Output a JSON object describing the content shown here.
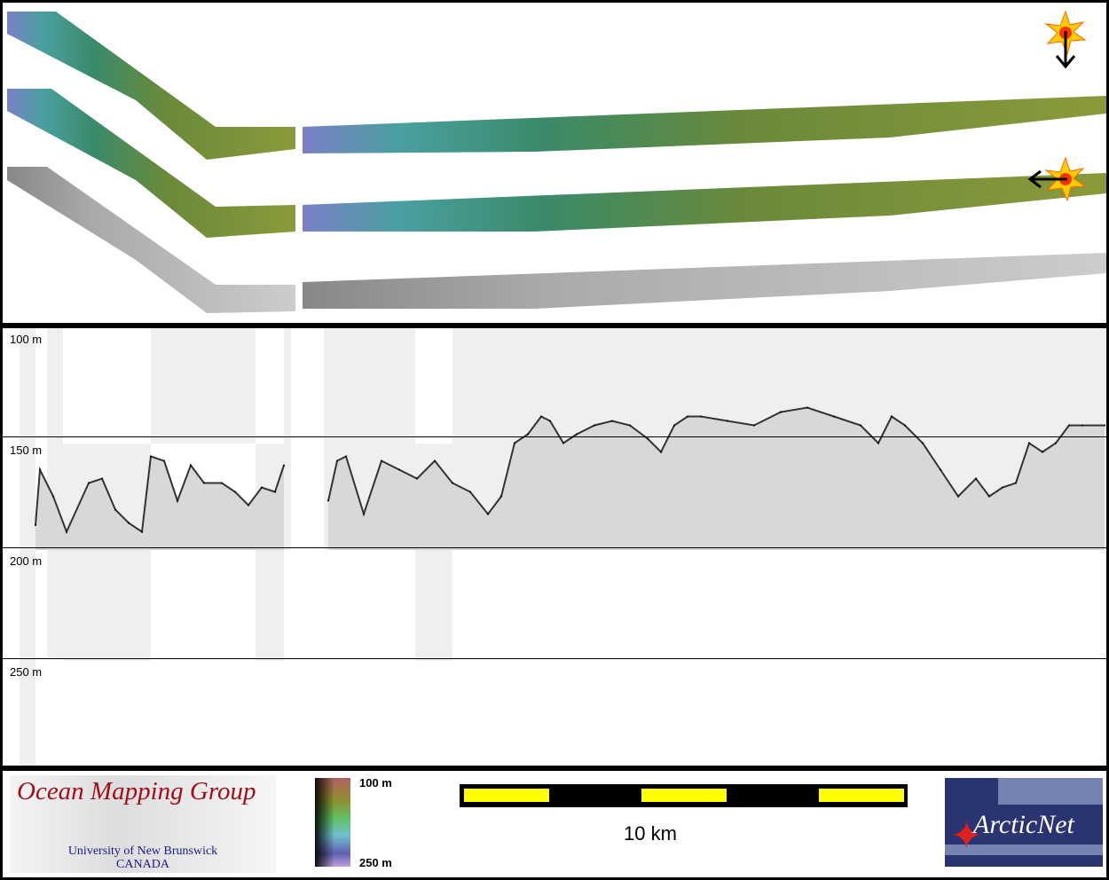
{
  "depth_axis": {
    "labels": [
      "100 m",
      "150 m",
      "200 m",
      "250 m"
    ],
    "values": [
      100,
      150,
      200,
      250
    ],
    "range": [
      100,
      300
    ]
  },
  "sun_icons": [
    {
      "name": "sun-illumination-north-icon",
      "arrow": "down"
    },
    {
      "name": "sun-illumination-east-icon",
      "arrow": "left"
    }
  ],
  "swath_strips": [
    {
      "name": "shaded-bathymetry-north-illuminated",
      "style": "color-shaded-relief"
    },
    {
      "name": "shaded-bathymetry-east-illuminated",
      "style": "color-shaded-relief"
    },
    {
      "name": "backscatter-mosaic",
      "style": "grayscale"
    }
  ],
  "chart_data": {
    "type": "line",
    "ylabel": "",
    "y_reversed": true,
    "ylim": [
      100,
      300
    ],
    "xunit": "km",
    "x": [
      0,
      0.1,
      0.4,
      0.7,
      1.2,
      1.5,
      1.8,
      2.1,
      2.4,
      2.6,
      2.9,
      3.2,
      3.5,
      3.8,
      4.2,
      4.5,
      4.8,
      5.1,
      5.4,
      5.6,
      5.8,
      6.6,
      6.8,
      7.0,
      7.4,
      7.8,
      8.2,
      8.6,
      9.0,
      9.4,
      9.8,
      10.2,
      10.5,
      10.8,
      11.1,
      11.4,
      11.6,
      11.9,
      12.2,
      12.6,
      13.0,
      13.4,
      13.8,
      14.1,
      14.4,
      14.7,
      15.0,
      15.6,
      16.2,
      16.8,
      17.4,
      18.0,
      18.6,
      19.0,
      19.3,
      19.6,
      20.0,
      20.4,
      20.8,
      21.2,
      21.5,
      21.8,
      22.1,
      22.4,
      22.7,
      23.0,
      23.3,
      23.6,
      24.1
    ],
    "values": [
      190,
      165,
      177,
      193,
      171,
      169,
      183,
      189,
      193,
      159,
      161,
      179,
      163,
      171,
      171,
      175,
      181,
      173,
      175,
      163,
      null,
      179,
      161,
      159,
      185,
      161,
      165,
      169,
      161,
      171,
      175,
      185,
      177,
      153,
      149,
      141,
      143,
      153,
      149,
      145,
      143,
      145,
      151,
      157,
      145,
      141,
      141,
      143,
      145,
      139,
      137,
      141,
      145,
      153,
      141,
      145,
      153,
      165,
      177,
      169,
      177,
      173,
      171,
      153,
      157,
      153,
      145,
      145,
      145
    ],
    "seafloor_color": "#333333",
    "water_column_color": "#efefef"
  },
  "footer": {
    "omg_title": "Ocean Mapping Group",
    "omg_sub1": "University of New Brunswick",
    "omg_sub2": "CANADA",
    "colorbar_top": "100 m",
    "colorbar_bottom": "250 m",
    "scale_label": "10 km",
    "arcticnet": "ArcticNet",
    "scale_color": "#ffff00"
  }
}
